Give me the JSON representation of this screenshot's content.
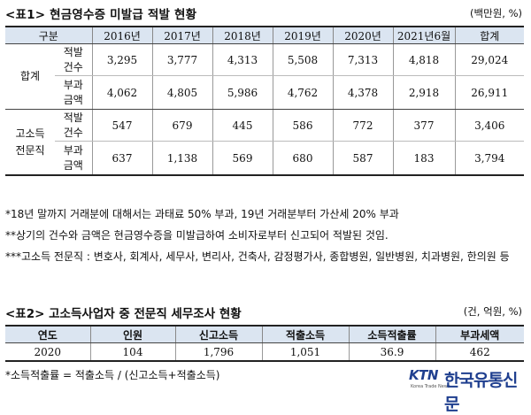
{
  "table1": {
    "title": "<표1> 현금영수증 미발급 적발 현황",
    "unit": "(백만원, %)",
    "headers": [
      "구분",
      "2016년",
      "2017년",
      "2018년",
      "2019년",
      "2020년",
      "2021년6월",
      "합계"
    ],
    "groups": [
      {
        "label_lines": [
          "합계"
        ],
        "rows": [
          {
            "metric_lines": [
              "적발",
              "건수"
            ],
            "values": [
              "3,295",
              "3,777",
              "4,313",
              "5,508",
              "7,313",
              "4,818",
              "29,024"
            ]
          },
          {
            "metric_lines": [
              "부과",
              "금액"
            ],
            "values": [
              "4,062",
              "4,805",
              "5,986",
              "4,762",
              "4,378",
              "2,918",
              "26,911"
            ]
          }
        ]
      },
      {
        "label_lines": [
          "고소득",
          "전문직"
        ],
        "rows": [
          {
            "metric_lines": [
              "적발",
              "건수"
            ],
            "values": [
              "547",
              "679",
              "445",
              "586",
              "772",
              "377",
              "3,406"
            ]
          },
          {
            "metric_lines": [
              "부과",
              "금액"
            ],
            "values": [
              "637",
              "1,138",
              "569",
              "680",
              "587",
              "183",
              "3,794"
            ]
          }
        ]
      }
    ]
  },
  "notes": [
    "*18년 말까지 거래분에 대해서는 과태료 50% 부과, 19년 거래분부터 가산세 20% 부과",
    "**상기의 건수와 금액은 현금영수증을 미발급하여 소비자로부터 신고되어 적발된 것임.",
    "***고소득 전문직 : 변호사, 회계사, 세무사, 변리사, 건축사, 감정평가사, 종합병원, 일반병원, 치과병원, 한의원 등"
  ],
  "table2": {
    "title": "<표2> 고소득사업자 중 전문직 세무조사 현황",
    "unit": "(건, 억원, %)",
    "headers": [
      "연도",
      "인원",
      "신고소득",
      "적출소득",
      "소득적출률",
      "부과세액"
    ],
    "values": [
      "2020",
      "104",
      "1,796",
      "1,051",
      "36.9",
      "462"
    ],
    "footnote": "*소득적출률 = 적출소득 / (신고소득+적출소득)"
  },
  "logo": {
    "mark": "KTN",
    "sub": "Korea Trade News",
    "name": "한국유통신문"
  },
  "colors": {
    "header_bg": "#dbe5f1",
    "logo_blue": "#1f3f8f"
  }
}
